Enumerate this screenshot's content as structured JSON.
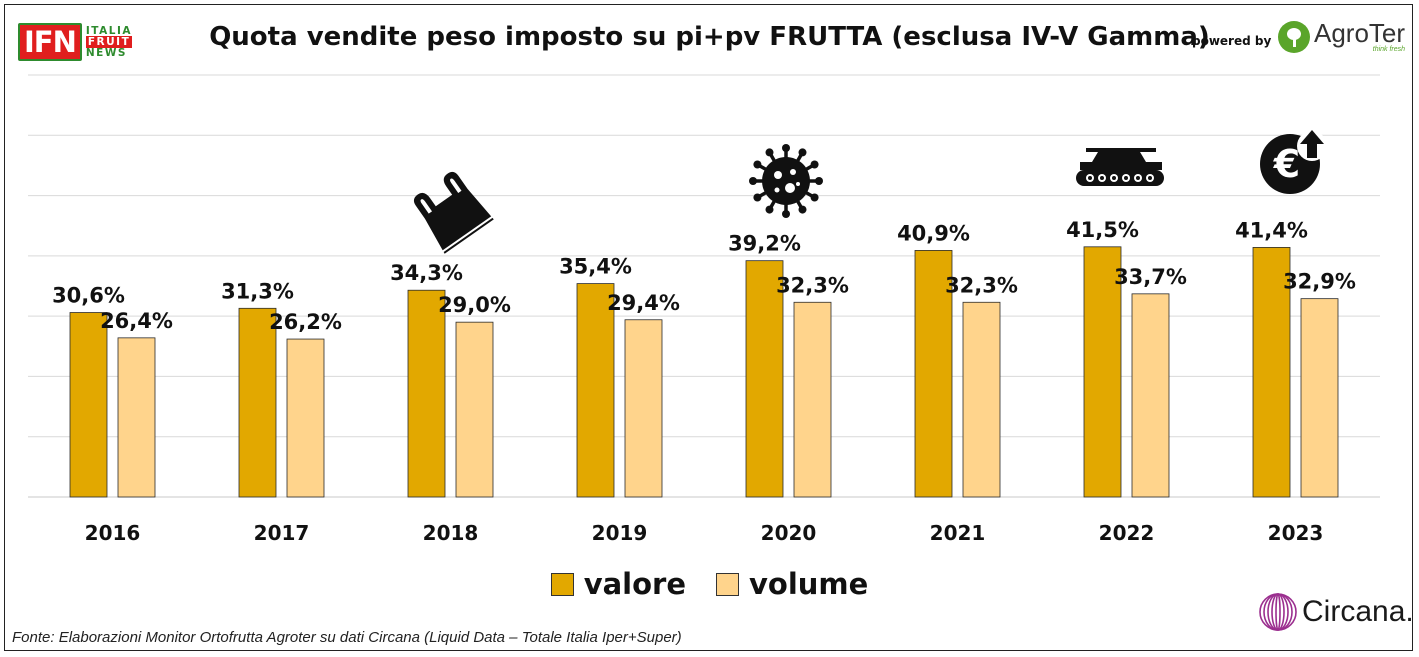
{
  "logo_left": {
    "main": "IFN",
    "line1": "ITALIA",
    "line2": "FRUIT",
    "line3": "NEWS"
  },
  "powered_by": "powered by",
  "logo_right": {
    "name": "AgroTer",
    "tagline": "think fresh"
  },
  "source": "Fonte: Elaborazioni Monitor Ortofrutta Agroter su dati  Circana (Liquid Data – Totale Italia Iper+Super)",
  "brand_bottom": "Circana.",
  "chart_data": {
    "type": "bar",
    "title": "Quota vendite peso imposto su pi+pv FRUTTA (esclusa IV-V Gamma)",
    "categories": [
      "2016",
      "2017",
      "2018",
      "2019",
      "2020",
      "2021",
      "2022",
      "2023"
    ],
    "series": [
      {
        "name": "valore",
        "color": "#E2A800",
        "values": [
          30.6,
          31.3,
          34.3,
          35.4,
          39.2,
          40.9,
          41.5,
          41.4
        ],
        "labels": [
          "30,6%",
          "31,3%",
          "34,3%",
          "35,4%",
          "39,2%",
          "40,9%",
          "41,5%",
          "41,4%"
        ]
      },
      {
        "name": "volume",
        "color": "#FFD48C",
        "values": [
          26.4,
          26.2,
          29.0,
          29.4,
          32.3,
          32.3,
          33.7,
          32.9
        ],
        "labels": [
          "26,4%",
          "26,2%",
          "29,0%",
          "29,4%",
          "32,3%",
          "32,3%",
          "33,7%",
          "32,9%"
        ]
      }
    ],
    "ylim": [
      0,
      70
    ],
    "grid": true,
    "legend_position": "bottom",
    "annotation_icons": [
      {
        "category": "2018",
        "icon": "plastic-bag-icon"
      },
      {
        "category": "2020",
        "icon": "virus-icon"
      },
      {
        "category": "2022",
        "icon": "tank-icon"
      },
      {
        "category": "2023",
        "icon": "euro-rising-icon"
      }
    ]
  }
}
